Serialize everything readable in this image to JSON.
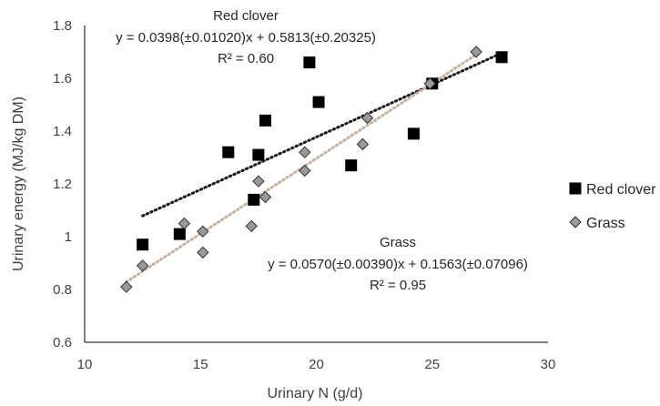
{
  "chart_data": {
    "type": "scatter",
    "xlabel": "Urinary N (g/d)",
    "ylabel": "Urinary energy (MJ/kg DM)",
    "xlim": [
      10,
      30
    ],
    "ylim": [
      0.6,
      1.8
    ],
    "x_ticks": [
      "10",
      "15",
      "20",
      "25",
      "30"
    ],
    "y_ticks": [
      "0.6",
      "0.8",
      "1",
      "1.2",
      "1.4",
      "1.6",
      "1.8"
    ],
    "grid": false,
    "legend_position": "right",
    "series": [
      {
        "name": "Red clover",
        "marker": "square",
        "color": "#000000",
        "trendline_color": "#1a1a1a",
        "points": [
          [
            12.5,
            0.97
          ],
          [
            14.1,
            1.01
          ],
          [
            16.2,
            1.32
          ],
          [
            17.3,
            1.14
          ],
          [
            17.5,
            1.31
          ],
          [
            17.8,
            1.44
          ],
          [
            19.7,
            1.66
          ],
          [
            20.1,
            1.51
          ],
          [
            21.5,
            1.27
          ],
          [
            24.2,
            1.39
          ],
          [
            25.0,
            1.58
          ],
          [
            28.0,
            1.68
          ]
        ],
        "trendline": {
          "slope": 0.0398,
          "intercept": 0.5813,
          "x_range": [
            12.5,
            28.0
          ]
        },
        "annotation": {
          "title": "Red clover",
          "equation": "y = 0.0398(±0.01020)x + 0.5813(±0.20325)",
          "r2": "R² = 0.60"
        }
      },
      {
        "name": "Grass",
        "marker": "diamond",
        "color": "#9a9a9a",
        "trendline_color": "#c9b09a",
        "points": [
          [
            11.8,
            0.81
          ],
          [
            12.5,
            0.89
          ],
          [
            14.3,
            1.05
          ],
          [
            15.1,
            0.94
          ],
          [
            15.1,
            1.02
          ],
          [
            17.2,
            1.04
          ],
          [
            17.5,
            1.21
          ],
          [
            17.8,
            1.15
          ],
          [
            19.5,
            1.32
          ],
          [
            19.5,
            1.25
          ],
          [
            22.0,
            1.35
          ],
          [
            22.2,
            1.45
          ],
          [
            24.9,
            1.58
          ],
          [
            26.9,
            1.7
          ]
        ],
        "trendline": {
          "slope": 0.057,
          "intercept": 0.1563,
          "x_range": [
            11.8,
            26.9
          ]
        },
        "annotation": {
          "title": "Grass",
          "equation": "y = 0.0570(±0.00390)x + 0.1563(±0.07096)",
          "r2": "R² = 0.95"
        }
      }
    ]
  }
}
